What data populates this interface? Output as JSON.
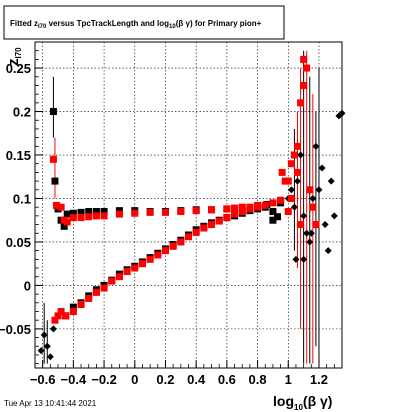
{
  "title": "Fitted  z_{I70} versus TpcTrackLength and log_{10}(βγ) for Primary pion+",
  "title_parts": {
    "pre": "Fitted  z",
    "sub1": "I70",
    "mid": " versus TpcTrackLength and log",
    "sub2": "10",
    "post": "(β γ) for Primary pion+"
  },
  "ylabel": {
    "main": "z",
    "sub": "I70"
  },
  "xlabel": {
    "main": "log",
    "sub": "10",
    "post": "(β γ)"
  },
  "timestamp": "Tue Apr 13 10:41:44 2021",
  "colors": {
    "black_series": "#000000",
    "red_series": "#ff0000",
    "grid": "#000000"
  },
  "chart_data": {
    "type": "scatter",
    "xlim": [
      -0.65,
      1.35
    ],
    "ylim": [
      -0.095,
      0.28
    ],
    "grid": true,
    "legend": "none",
    "x_ticks": [
      {
        "v": -0.6,
        "label": "−0.6"
      },
      {
        "v": -0.4,
        "label": "−0.4"
      },
      {
        "v": -0.2,
        "label": "−0.2"
      },
      {
        "v": 0,
        "label": "0"
      },
      {
        "v": 0.2,
        "label": "0.2"
      },
      {
        "v": 0.4,
        "label": "0.4"
      },
      {
        "v": 0.6,
        "label": "0.6"
      },
      {
        "v": 0.8,
        "label": "0.8"
      },
      {
        "v": 1.0,
        "label": "1"
      },
      {
        "v": 1.2,
        "label": "1.2"
      }
    ],
    "y_ticks": [
      {
        "v": -0.05,
        "label": "−0.05"
      },
      {
        "v": 0,
        "label": "0"
      },
      {
        "v": 0.05,
        "label": "0.05"
      },
      {
        "v": 0.1,
        "label": "0.1"
      },
      {
        "v": 0.15,
        "label": "0.15"
      },
      {
        "v": 0.2,
        "label": "0.2"
      },
      {
        "v": 0.25,
        "label": "0.25"
      }
    ],
    "series": [
      {
        "color": "black",
        "points": [
          [
            -0.61,
            -0.075
          ],
          [
            -0.59,
            -0.057
          ],
          [
            -0.57,
            -0.07
          ],
          [
            -0.55,
            -0.082
          ],
          [
            -0.53,
            -0.05
          ],
          [
            -0.53,
            0.2
          ],
          [
            -0.52,
            0.12
          ],
          [
            -0.5,
            0.088
          ],
          [
            -0.48,
            0.075
          ],
          [
            -0.46,
            0.068
          ],
          [
            -0.44,
            0.082
          ],
          [
            -0.4,
            0.083
          ],
          [
            -0.35,
            0.084
          ],
          [
            -0.3,
            0.085
          ],
          [
            -0.25,
            0.085
          ],
          [
            -0.2,
            0.085
          ],
          [
            -0.1,
            0.086
          ],
          [
            0.0,
            0.086
          ],
          [
            0.1,
            0.085
          ],
          [
            0.2,
            0.085
          ],
          [
            0.3,
            0.086
          ],
          [
            0.4,
            0.087
          ],
          [
            0.5,
            0.087
          ],
          [
            0.6,
            0.088
          ],
          [
            0.7,
            0.089
          ],
          [
            0.8,
            0.091
          ],
          [
            0.85,
            0.09
          ],
          [
            0.9,
            0.085
          ],
          [
            0.95,
            0.095
          ],
          [
            1.0,
            0.1
          ],
          [
            0.93,
            0.079
          ],
          [
            0.9,
            0.075
          ],
          [
            -0.45,
            -0.035
          ],
          [
            -0.4,
            -0.025
          ],
          [
            -0.35,
            -0.02
          ],
          [
            -0.3,
            -0.012
          ],
          [
            -0.25,
            -0.005
          ],
          [
            -0.2,
            0.0
          ],
          [
            -0.15,
            0.006
          ],
          [
            -0.1,
            0.013
          ],
          [
            -0.05,
            0.018
          ],
          [
            0.0,
            0.022
          ],
          [
            0.05,
            0.027
          ],
          [
            0.1,
            0.032
          ],
          [
            0.15,
            0.037
          ],
          [
            0.2,
            0.042
          ],
          [
            0.25,
            0.047
          ],
          [
            0.3,
            0.052
          ],
          [
            0.35,
            0.058
          ],
          [
            0.4,
            0.064
          ],
          [
            0.45,
            0.068
          ],
          [
            0.5,
            0.072
          ],
          [
            0.55,
            0.075
          ],
          [
            0.6,
            0.078
          ],
          [
            0.65,
            0.08
          ],
          [
            0.7,
            0.083
          ],
          [
            0.75,
            0.086
          ],
          [
            0.8,
            0.088
          ],
          [
            0.86,
            0.093
          ],
          [
            1.02,
            0.11
          ],
          [
            1.04,
            0.09
          ],
          [
            1.06,
            0.12
          ],
          [
            1.08,
            0.15
          ],
          [
            1.1,
            0.08
          ],
          [
            1.12,
            0.06
          ],
          [
            1.14,
            0.05
          ],
          [
            1.16,
            0.1
          ],
          [
            1.18,
            0.16
          ],
          [
            1.2,
            0.11
          ],
          [
            1.22,
            0.135
          ],
          [
            1.24,
            0.07
          ],
          [
            1.26,
            0.04
          ],
          [
            1.28,
            0.12
          ],
          [
            1.3,
            0.08
          ],
          [
            1.33,
            0.195
          ],
          [
            1.35,
            0.198
          ],
          [
            1.05,
            0.03
          ],
          [
            1.1,
            0.03
          ],
          [
            1.15,
            0.06
          ]
        ]
      },
      {
        "color": "red",
        "points": [
          [
            -0.53,
            0.145
          ],
          [
            -0.51,
            0.092
          ],
          [
            -0.48,
            0.09
          ],
          [
            -0.46,
            0.075
          ],
          [
            -0.44,
            0.073
          ],
          [
            -0.4,
            0.078
          ],
          [
            -0.35,
            0.078
          ],
          [
            -0.3,
            0.079
          ],
          [
            -0.25,
            0.08
          ],
          [
            -0.2,
            0.08
          ],
          [
            -0.1,
            0.082
          ],
          [
            0.0,
            0.083
          ],
          [
            0.1,
            0.084
          ],
          [
            0.2,
            0.084
          ],
          [
            0.3,
            0.085
          ],
          [
            0.4,
            0.086
          ],
          [
            0.5,
            0.087
          ],
          [
            0.6,
            0.088
          ],
          [
            0.65,
            0.089
          ],
          [
            0.7,
            0.09
          ],
          [
            0.75,
            0.09
          ],
          [
            0.8,
            0.092
          ],
          [
            -0.52,
            -0.04
          ],
          [
            -0.5,
            -0.035
          ],
          [
            -0.48,
            -0.03
          ],
          [
            -0.45,
            -0.035
          ],
          [
            -0.4,
            -0.03
          ],
          [
            -0.35,
            -0.022
          ],
          [
            -0.3,
            -0.015
          ],
          [
            -0.25,
            -0.008
          ],
          [
            -0.2,
            -0.003
          ],
          [
            -0.15,
            0.005
          ],
          [
            -0.1,
            0.01
          ],
          [
            -0.05,
            0.016
          ],
          [
            0.0,
            0.02
          ],
          [
            0.05,
            0.025
          ],
          [
            0.1,
            0.03
          ],
          [
            0.15,
            0.035
          ],
          [
            0.2,
            0.04
          ],
          [
            0.25,
            0.045
          ],
          [
            0.3,
            0.05
          ],
          [
            0.35,
            0.056
          ],
          [
            0.4,
            0.061
          ],
          [
            0.45,
            0.066
          ],
          [
            0.5,
            0.07
          ],
          [
            0.55,
            0.074
          ],
          [
            0.6,
            0.078
          ],
          [
            0.65,
            0.082
          ],
          [
            0.7,
            0.085
          ],
          [
            0.75,
            0.088
          ],
          [
            0.8,
            0.09
          ],
          [
            0.85,
            0.092
          ],
          [
            0.9,
            0.095
          ],
          [
            0.95,
            0.098
          ],
          [
            1.0,
            0.12
          ],
          [
            1.02,
            0.14
          ],
          [
            1.04,
            0.15
          ],
          [
            1.06,
            0.16
          ],
          [
            1.08,
            0.21
          ],
          [
            1.1,
            0.26
          ],
          [
            1.12,
            0.25
          ],
          [
            1.14,
            0.11
          ],
          [
            1.16,
            0.09
          ],
          [
            1.18,
            0.07
          ],
          [
            1.0,
            0.085
          ],
          [
            1.02,
            0.1
          ],
          [
            1.06,
            0.13
          ],
          [
            1.08,
            0.07
          ],
          [
            1.1,
            0.23
          ],
          [
            0.98,
            0.12
          ],
          [
            0.96,
            0.13
          ]
        ]
      }
    ]
  }
}
